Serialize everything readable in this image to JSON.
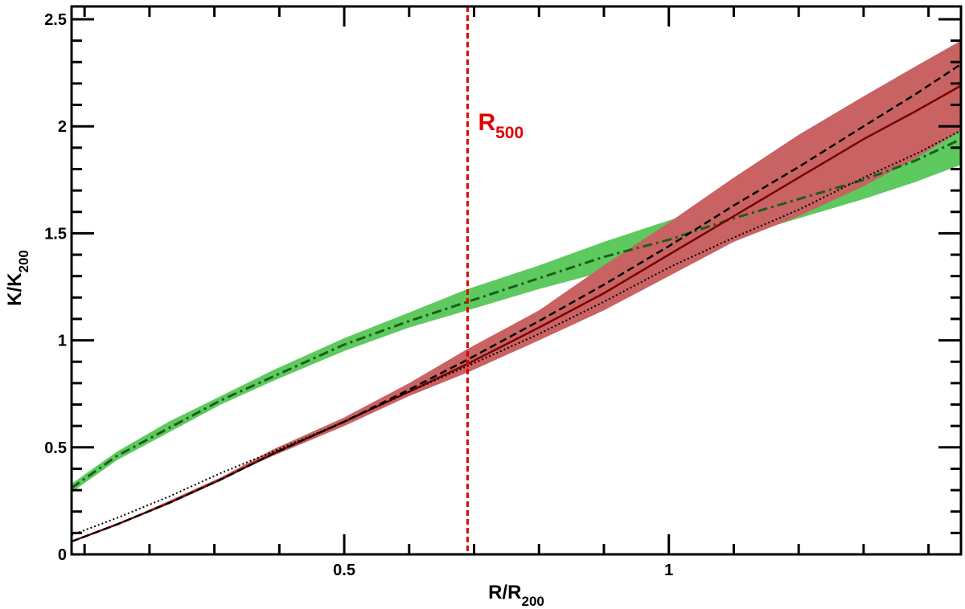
{
  "chart_data": {
    "type": "line",
    "xlabel": {
      "main": "R/R",
      "sub": "200"
    },
    "ylabel": {
      "main": "K/K",
      "sub": "200"
    },
    "xlim": [
      0.08,
      1.45
    ],
    "ylim": [
      0,
      2.56
    ],
    "x_ticks": [
      {
        "value": 0.5,
        "label": "0.5"
      },
      {
        "value": 1.0,
        "label": "1"
      }
    ],
    "y_ticks": [
      {
        "value": 0,
        "label": "0"
      },
      {
        "value": 0.5,
        "label": "0.5"
      },
      {
        "value": 1.0,
        "label": "1"
      },
      {
        "value": 1.5,
        "label": "1.5"
      },
      {
        "value": 2.0,
        "label": "2"
      },
      {
        "value": 2.5,
        "label": "2.5"
      }
    ],
    "x_minor_step": 0.1,
    "y_minor_step": 0.1,
    "grid": false,
    "annotations": [
      {
        "type": "vline",
        "x": 0.69,
        "color": "#e00000",
        "dash": "dashed",
        "label": {
          "main": "R",
          "sub": "500"
        }
      }
    ],
    "bands": [
      {
        "color": "#5ec95e",
        "x": [
          0.08,
          0.15,
          0.23,
          0.31,
          0.39,
          0.5,
          0.6,
          0.69,
          0.8,
          0.9,
          1.0,
          1.1,
          1.2,
          1.3,
          1.38,
          1.45
        ],
        "lower": [
          0.29,
          0.44,
          0.57,
          0.7,
          0.81,
          0.95,
          1.06,
          1.14,
          1.24,
          1.32,
          1.39,
          1.48,
          1.57,
          1.66,
          1.74,
          1.82
        ],
        "upper": [
          0.33,
          0.48,
          0.62,
          0.74,
          0.86,
          1.01,
          1.13,
          1.24,
          1.35,
          1.46,
          1.56,
          1.66,
          1.76,
          1.86,
          1.96,
          2.06
        ]
      },
      {
        "color": "#c96262",
        "x": [
          0.08,
          0.15,
          0.23,
          0.31,
          0.39,
          0.5,
          0.6,
          0.69,
          0.8,
          0.9,
          1.0,
          1.1,
          1.2,
          1.3,
          1.38,
          1.45
        ],
        "lower": [
          0.06,
          0.14,
          0.24,
          0.35,
          0.46,
          0.6,
          0.74,
          0.85,
          1.0,
          1.14,
          1.3,
          1.46,
          1.58,
          1.72,
          1.85,
          1.98
        ],
        "upper": [
          0.06,
          0.14,
          0.25,
          0.36,
          0.49,
          0.64,
          0.8,
          0.96,
          1.14,
          1.35,
          1.55,
          1.76,
          1.96,
          2.14,
          2.28,
          2.4
        ]
      }
    ],
    "series": [
      {
        "color": "#1a5e1a",
        "style": "dash-dot",
        "width": 3,
        "x": [
          0.08,
          0.15,
          0.23,
          0.31,
          0.39,
          0.5,
          0.6,
          0.69,
          0.8,
          0.9,
          1.0,
          1.1,
          1.2,
          1.3,
          1.38,
          1.45
        ],
        "y": [
          0.31,
          0.46,
          0.59,
          0.72,
          0.83,
          0.98,
          1.09,
          1.18,
          1.29,
          1.39,
          1.47,
          1.57,
          1.66,
          1.75,
          1.84,
          1.94
        ]
      },
      {
        "color": "#7a0000",
        "style": "solid",
        "width": 2.5,
        "x": [
          0.08,
          0.15,
          0.23,
          0.31,
          0.39,
          0.5,
          0.6,
          0.69,
          0.8,
          0.9,
          1.0,
          1.1,
          1.2,
          1.3,
          1.38,
          1.45
        ],
        "y": [
          0.06,
          0.14,
          0.24,
          0.35,
          0.47,
          0.62,
          0.76,
          0.89,
          1.06,
          1.22,
          1.4,
          1.58,
          1.76,
          1.94,
          2.07,
          2.19
        ]
      },
      {
        "color": "#000000",
        "style": "dashed",
        "width": 2.5,
        "x": [
          0.08,
          0.15,
          0.23,
          0.31,
          0.39,
          0.5,
          0.6,
          0.69,
          0.8,
          0.9,
          1.0,
          1.1,
          1.2,
          1.3,
          1.38,
          1.45
        ],
        "y": [
          0.06,
          0.14,
          0.24,
          0.35,
          0.47,
          0.62,
          0.77,
          0.91,
          1.09,
          1.26,
          1.44,
          1.63,
          1.81,
          2.0,
          2.15,
          2.29
        ]
      },
      {
        "color": "#000000",
        "style": "dotted",
        "width": 2,
        "x": [
          0.08,
          0.15,
          0.23,
          0.31,
          0.39,
          0.5,
          0.6,
          0.69,
          0.8,
          0.9,
          1.0,
          1.1,
          1.2,
          1.3,
          1.38,
          1.45
        ],
        "y": [
          0.09,
          0.17,
          0.27,
          0.38,
          0.48,
          0.62,
          0.76,
          0.88,
          1.03,
          1.18,
          1.34,
          1.48,
          1.61,
          1.76,
          1.87,
          1.98
        ]
      }
    ]
  }
}
